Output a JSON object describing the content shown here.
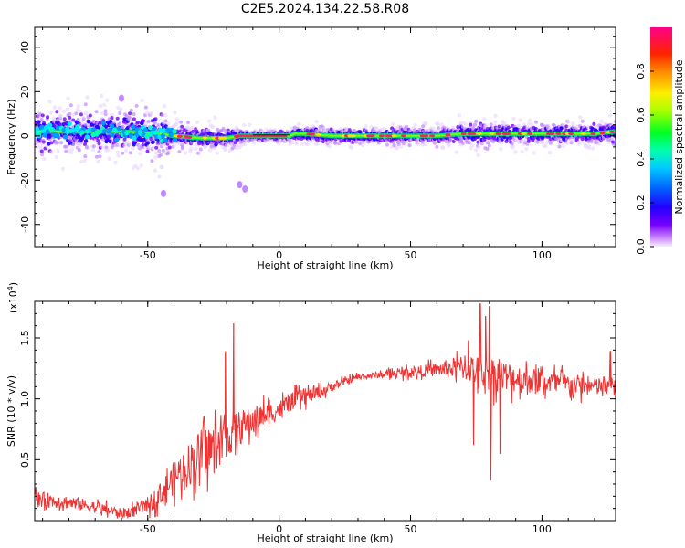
{
  "title": "C2E5.2024.134.22.58.R08",
  "colors": {
    "snr_line": "#ee3333",
    "ridge": "#00ff60",
    "peak": "#ff2255",
    "spread": "#3300ff"
  },
  "icons": {
    "colorbar": "rainbow-colorbar-icon"
  },
  "chart_data": [
    {
      "type": "heatmap",
      "title": "C2E5.2024.134.22.58.R08",
      "xlabel": "Height of straight line (km)",
      "ylabel": "Frequency (Hz)",
      "xlim": [
        -93,
        128
      ],
      "ylim": [
        -50,
        49
      ],
      "xticks": [
        -50,
        0,
        50,
        100
      ],
      "yticks": [
        -40,
        -20,
        0,
        20,
        40
      ],
      "colorbar": {
        "label": "Normalized spectral amplitude",
        "range": [
          0.0,
          1.0
        ],
        "ticks": [
          "0.0",
          "0.2",
          "0.4",
          "0.6",
          "0.8"
        ],
        "tick_values": [
          0.0,
          0.2,
          0.4,
          0.6,
          0.8
        ],
        "colormap": "rainbow (violet → blue → cyan → green → yellow → red → magenta)"
      },
      "ridge": {
        "x": [
          -93,
          -80,
          -60,
          -45,
          -40,
          -30,
          -20,
          -15,
          -10,
          0,
          4,
          6,
          10,
          20,
          30,
          40,
          50,
          60,
          70,
          80,
          90,
          100,
          110,
          120,
          128
        ],
        "center_hz": [
          2,
          2,
          2,
          1,
          0,
          -1,
          -1,
          0,
          0,
          0,
          0,
          1,
          1,
          0,
          0,
          0,
          0,
          0,
          1,
          1,
          1,
          1,
          1,
          1,
          2
        ],
        "spread_hz": [
          8,
          8,
          8,
          9,
          5,
          4,
          4,
          3,
          2,
          2,
          2,
          3,
          3,
          3,
          3,
          3,
          3,
          3,
          4,
          5,
          4,
          4,
          4,
          4,
          4
        ]
      },
      "outliers": [
        {
          "x": -13,
          "y": -24
        },
        {
          "x": -15,
          "y": -22
        },
        {
          "x": -60,
          "y": 17
        },
        {
          "x": -44,
          "y": -26
        }
      ]
    },
    {
      "type": "line",
      "title": "",
      "xlabel": "Height of straight line (km)",
      "ylabel": "SNR (10 * v/v)",
      "multiplier": "(x10^4)",
      "multiplier_base": "(x10",
      "multiplier_exp": "4",
      "multiplier_close": ")",
      "xlim": [
        -93,
        128
      ],
      "ylim": [
        0,
        18000
      ],
      "xticks": [
        -50,
        0,
        50,
        100
      ],
      "yticks": [
        5000,
        10000,
        15000
      ],
      "ytick_labels": [
        "0.5",
        "1.0",
        "1.5"
      ],
      "series": [
        {
          "x": [
            -93,
            -80,
            -70,
            -60,
            -55,
            -50,
            -45,
            -40,
            -35,
            -30,
            -25,
            -20,
            -17,
            -15,
            -10,
            -5,
            0,
            5,
            10,
            15,
            20,
            25,
            30,
            40,
            50,
            60,
            70,
            80,
            90,
            100,
            110,
            120,
            128
          ],
          "values": [
            1800,
            1500,
            1100,
            600,
            800,
            1300,
            2200,
            3500,
            4500,
            5500,
            6000,
            6800,
            7500,
            7600,
            8200,
            8700,
            9100,
            9800,
            10200,
            10500,
            11000,
            11400,
            11800,
            12000,
            12200,
            12400,
            12600,
            12100,
            11700,
            11400,
            11200,
            11000,
            11000
          ],
          "noise": [
            800,
            700,
            600,
            500,
            600,
            800,
            1200,
            1700,
            2200,
            2500,
            2500,
            2300,
            2000,
            1800,
            1500,
            1200,
            1000,
            900,
            800,
            700,
            500,
            400,
            300,
            350,
            500,
            700,
            1300,
            1800,
            1500,
            1200,
            1100,
            1000,
            1000
          ],
          "spikes": [
            {
              "x": -17.3,
              "y": 16200
            },
            {
              "x": -20.5,
              "y": 13900
            },
            {
              "x": 76.5,
              "y": 17800
            },
            {
              "x": 78.5,
              "y": 16800
            },
            {
              "x": 80.0,
              "y": 17600
            },
            {
              "x": 80.5,
              "y": 3300
            },
            {
              "x": 72.0,
              "y": 14800
            },
            {
              "x": 74.0,
              "y": 6200
            },
            {
              "x": 84.0,
              "y": 5500
            },
            {
              "x": 126.0,
              "y": 13900
            }
          ]
        }
      ]
    }
  ]
}
